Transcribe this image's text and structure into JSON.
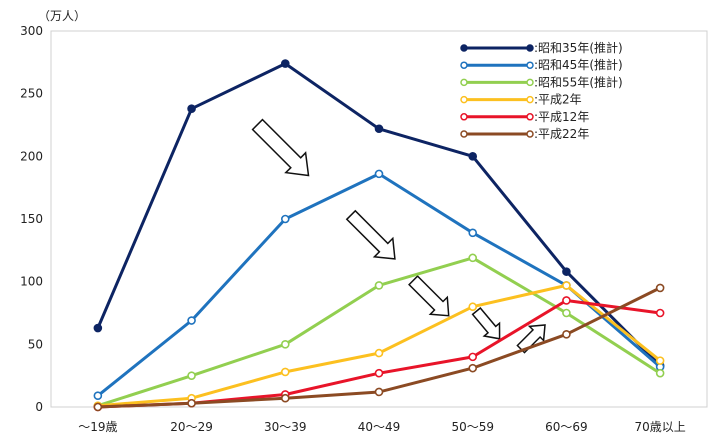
{
  "chart_data": {
    "type": "line",
    "unit_label": "（万人）",
    "categories": [
      "～19歳",
      "20～29",
      "30～39",
      "40～49",
      "50～59",
      "60～69",
      "70歳以上"
    ],
    "ylim": [
      0,
      300
    ],
    "yticks": [
      0,
      50,
      100,
      150,
      200,
      250,
      300
    ],
    "grid": false,
    "legend_position": "top-right",
    "series": [
      {
        "name": ":昭和35年(推計)",
        "color": "#0d2463",
        "marker": "filled",
        "values": [
          63,
          238,
          274,
          222,
          200,
          108,
          33
        ]
      },
      {
        "name": ":昭和45年(推計)",
        "color": "#1f73be",
        "marker": "hollow",
        "values": [
          9,
          69,
          150,
          186,
          139,
          97,
          32
        ]
      },
      {
        "name": ":昭和55年(推計)",
        "color": "#92cf50",
        "marker": "hollow",
        "values": [
          1,
          25,
          50,
          97,
          119,
          75,
          27
        ]
      },
      {
        "name": ":平成2年",
        "color": "#fcc020",
        "marker": "hollow",
        "values": [
          1,
          7,
          28,
          43,
          80,
          97,
          37
        ]
      },
      {
        "name": ":平成12年",
        "color": "#e81429",
        "marker": "hollow",
        "values": [
          0,
          3,
          10,
          27,
          40,
          85,
          75
        ]
      },
      {
        "name": ":平成22年",
        "color": "#8b4a23",
        "marker": "hollow",
        "values": [
          0,
          3,
          7,
          12,
          31,
          58,
          95
        ]
      }
    ]
  }
}
